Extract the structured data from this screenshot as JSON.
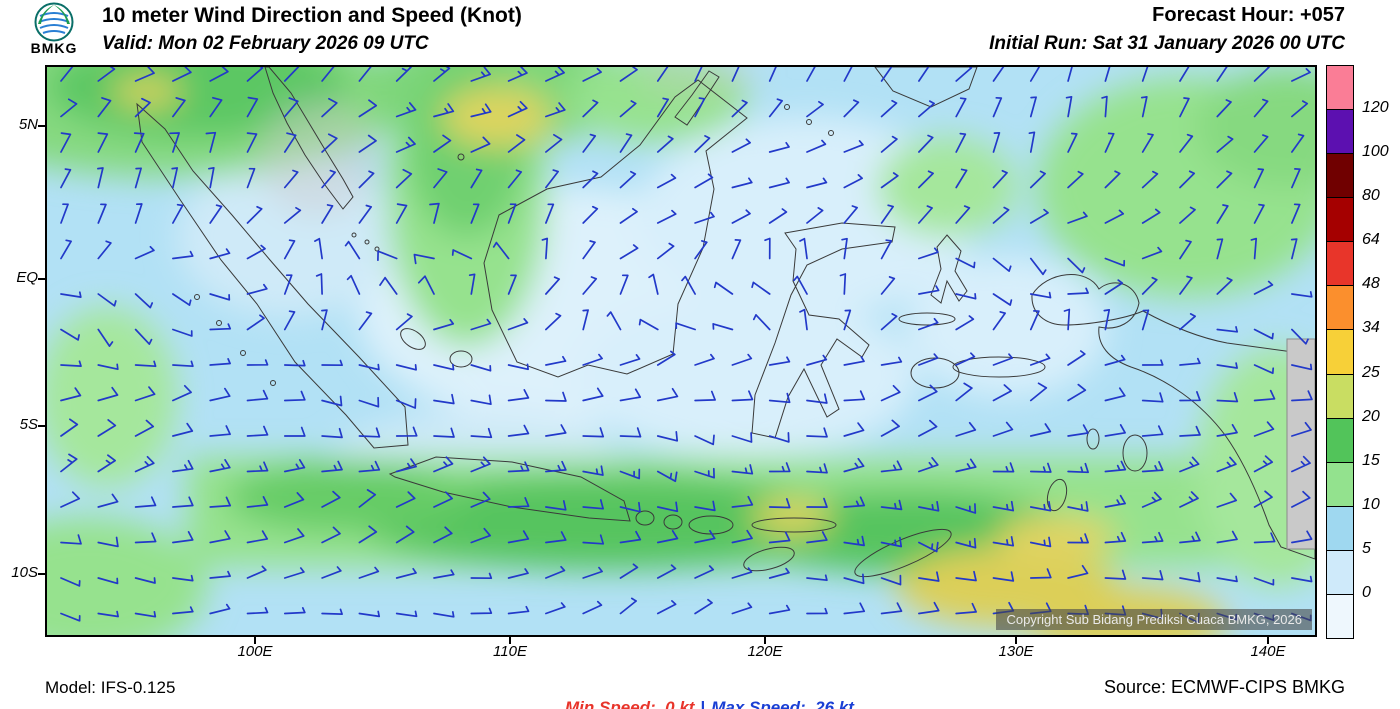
{
  "header": {
    "logo_text": "BMKG",
    "title": "10 meter Wind Direction and Speed (Knot)",
    "valid": "Valid: Mon 02 February 2026 09 UTC",
    "forecast_hour": "Forecast Hour: +057",
    "initial_run": "Initial Run: Sat 31 January 2026 00 UTC"
  },
  "map": {
    "copyright": "Copyright Sub Bidang Prediksi Cuaca BMKG, 2026",
    "lat_ticks": [
      "5N",
      "EQ",
      "5S",
      "10S"
    ],
    "lon_ticks": [
      "100E",
      "110E",
      "120E",
      "130E",
      "140E"
    ],
    "barb_color": "#2239c9"
  },
  "legend": {
    "boxes": [
      {
        "color": "#fa7d96",
        "label": "120"
      },
      {
        "color": "#5c10b0",
        "label": "100"
      },
      {
        "color": "#700000",
        "label": "80"
      },
      {
        "color": "#a50000",
        "label": "64"
      },
      {
        "color": "#e8352a",
        "label": "48"
      },
      {
        "color": "#fb8f2d",
        "label": "34"
      },
      {
        "color": "#f7d038",
        "label": "25"
      },
      {
        "color": "#c9dd62",
        "label": "20"
      },
      {
        "color": "#52c45a",
        "label": "15"
      },
      {
        "color": "#93e28e",
        "label": "10"
      },
      {
        "color": "#9fd8f0",
        "label": "5"
      },
      {
        "color": "#cfeafa",
        "label": "0"
      },
      {
        "color": "#eef7fd",
        "label": null
      }
    ]
  },
  "footer": {
    "model": "Model: IFS-0.125",
    "min_speed": "Min Speed:  0 kt",
    "separator": "|",
    "max_speed": "Max Speed:  26 kt",
    "source": "Source: ECMWF-CIPS BMKG"
  }
}
